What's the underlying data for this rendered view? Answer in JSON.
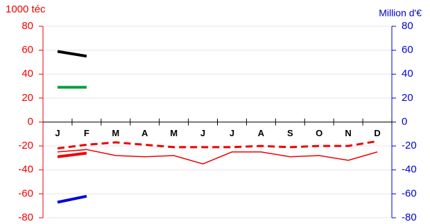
{
  "chart_data": {
    "type": "line",
    "y_label": "1000 téc",
    "y2_label": "Million d'€",
    "categories": [
      "J",
      "F",
      "M",
      "A",
      "M",
      "J",
      "J",
      "A",
      "S",
      "O",
      "N",
      "D"
    ],
    "series": [
      {
        "color": "#000000",
        "width": 4,
        "values": [
          59,
          55,
          null,
          null,
          null,
          null,
          null,
          null,
          null,
          null,
          null,
          null
        ]
      },
      {
        "color": "#00a040",
        "width": 4,
        "values": [
          29,
          29,
          null,
          null,
          null,
          null,
          null,
          null,
          null,
          null,
          null,
          null
        ]
      },
      {
        "color": "#ee0000",
        "width": 4,
        "values": [
          -29,
          -26,
          null,
          null,
          null,
          null,
          null,
          null,
          null,
          null,
          null,
          null
        ]
      },
      {
        "color": "#0000dd",
        "width": 4,
        "axis": "y2",
        "values": [
          -67,
          -62,
          null,
          null,
          null,
          null,
          null,
          null,
          null,
          null,
          null,
          null
        ]
      },
      {
        "color": "#ee0000",
        "width": 3,
        "dashed": true,
        "values": [
          -22,
          -19,
          -17,
          -19,
          -21,
          -21,
          -21,
          -20,
          -21,
          -20,
          -20,
          -16
        ]
      },
      {
        "color": "#ee0000",
        "width": 1.5,
        "values": [
          -25,
          -23,
          -28,
          -29,
          -28,
          -35,
          -25,
          -25,
          -29,
          -28,
          -32,
          -25
        ]
      }
    ],
    "ylim": [
      -80,
      80
    ],
    "yticks": [
      -80,
      -60,
      -40,
      -20,
      0,
      20,
      40,
      60,
      80
    ],
    "y2lim": [
      -80,
      80
    ],
    "y2ticks": [
      -80,
      -60,
      -40,
      -20,
      0,
      20,
      40,
      60,
      80
    ],
    "y_color": "#ee0000",
    "y2_color": "#0000cc",
    "grid": true
  }
}
